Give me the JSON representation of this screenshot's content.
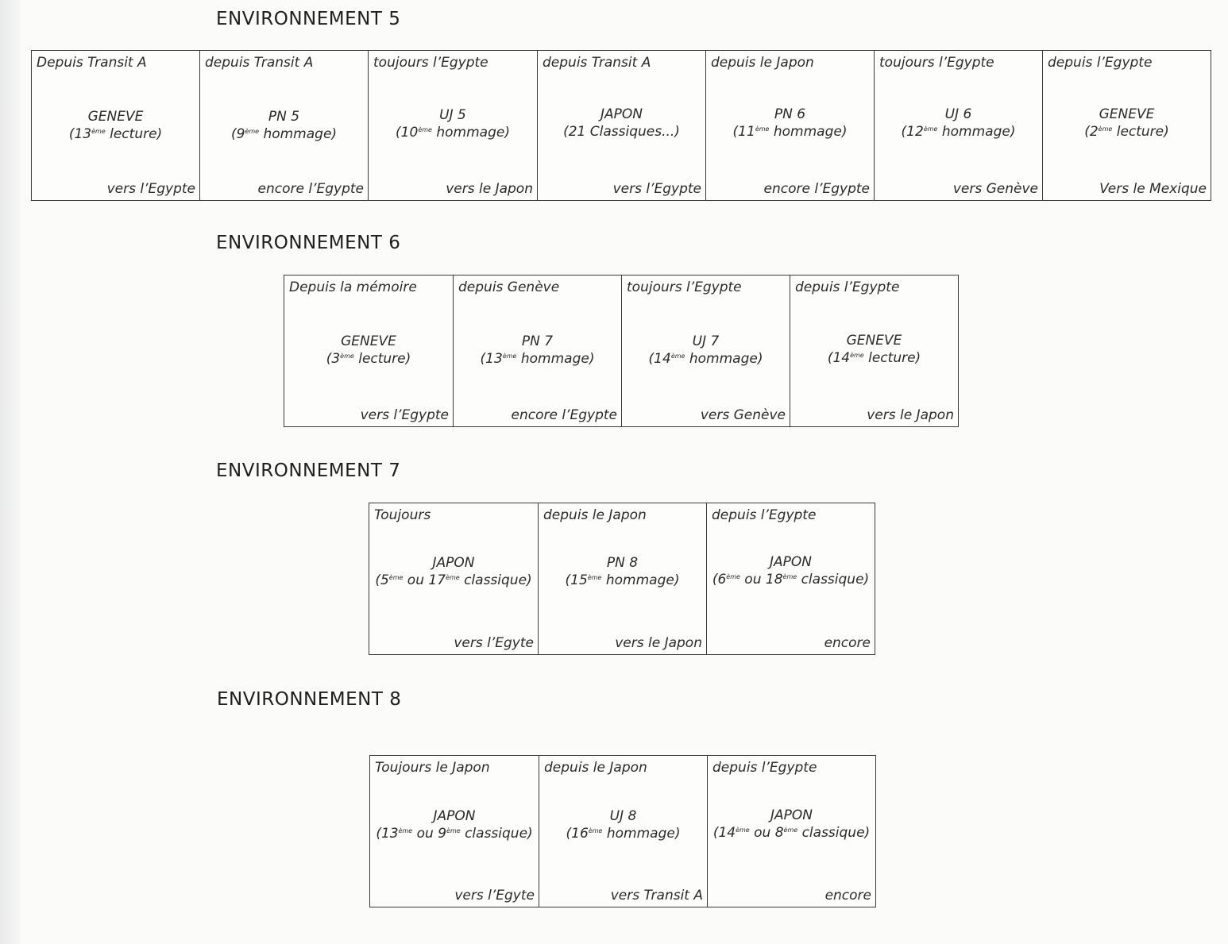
{
  "environments": [
    {
      "title": "ENVIRONNEMENT 5",
      "cells": [
        {
          "top": "Depuis Transit A",
          "name": "GENEVE",
          "note_pre": "(13",
          "note_sup": "ème",
          "note_post": " lecture)",
          "bottom": "vers l’Egypte"
        },
        {
          "top": "depuis Transit A",
          "name": "PN 5",
          "note_pre": "(9",
          "note_sup": "ème",
          "note_post": " hommage)",
          "bottom": "encore l’Egypte"
        },
        {
          "top": "toujours l’Egypte",
          "name": "UJ 5",
          "note_pre": "(10",
          "note_sup": "ème",
          "note_post": " hommage)",
          "bottom": "vers le Japon"
        },
        {
          "top": "depuis Transit A",
          "name": "JAPON",
          "note_pre": "(21 Classiques...)",
          "note_sup": "",
          "note_post": "",
          "bottom": "vers l’Egypte"
        },
        {
          "top": "depuis le Japon",
          "name": "PN 6",
          "note_pre": "(11",
          "note_sup": "ème",
          "note_post": " hommage)",
          "bottom": "encore l’Egypte"
        },
        {
          "top": "toujours l’Egypte",
          "name": "UJ 6",
          "note_pre": "(12",
          "note_sup": "ème",
          "note_post": " hommage)",
          "bottom": "vers Genève"
        },
        {
          "top": "depuis l’Egypte",
          "name": "GENEVE",
          "note_pre": "(2",
          "note_sup": "ème",
          "note_post": " lecture)",
          "bottom": "Vers le Mexique"
        }
      ]
    },
    {
      "title": "ENVIRONNEMENT 6",
      "cells": [
        {
          "top": "Depuis la mémoire",
          "name": "GENEVE",
          "note_pre": "(3",
          "note_sup": "ème",
          "note_post": " lecture)",
          "bottom": "vers l’Egypte"
        },
        {
          "top": "depuis Genève",
          "name": "PN 7",
          "note_pre": "(13",
          "note_sup": "ème",
          "note_post": " hommage)",
          "bottom": "encore l’Egypte"
        },
        {
          "top": "toujours l’Egypte",
          "name": "UJ 7",
          "note_pre": "(14",
          "note_sup": "ème",
          "note_post": " hommage)",
          "bottom": "vers Genève"
        },
        {
          "top": "depuis l’Egypte",
          "name": "GENEVE",
          "note_pre": "(14",
          "note_sup": "ème",
          "note_post": " lecture)",
          "bottom": "vers le Japon"
        }
      ]
    },
    {
      "title": "ENVIRONNEMENT 7",
      "cells": [
        {
          "top": "Toujours",
          "name": "JAPON",
          "note_pre": "(5",
          "note_sup": "ème",
          "note_mid": " ou 17",
          "note_sup2": "ème",
          "note_post": " classique)",
          "bottom": "vers l’Egyte"
        },
        {
          "top": "depuis le Japon",
          "name": "PN 8",
          "note_pre": "(15",
          "note_sup": "ème",
          "note_post": " hommage)",
          "bottom": "vers le Japon"
        },
        {
          "top": "depuis l’Egypte",
          "name": "JAPON",
          "note_pre": "(6",
          "note_sup": "ème",
          "note_mid": " ou 18",
          "note_sup2": "ème",
          "note_post": " classique)",
          "bottom": "encore"
        }
      ]
    },
    {
      "title": "ENVIRONNEMENT 8",
      "cells": [
        {
          "top": "Toujours le Japon",
          "name": "JAPON",
          "note_pre": "(13",
          "note_sup": "ème",
          "note_mid": " ou 9",
          "note_sup2": "ème",
          "note_post": " classique)",
          "bottom": "vers l’Egyte"
        },
        {
          "top": "depuis le Japon",
          "name": "UJ 8",
          "note_pre": "(16",
          "note_sup": "ème",
          "note_post": " hommage)",
          "bottom": "vers Transit A"
        },
        {
          "top": "depuis l’Egypte",
          "name": "JAPON",
          "note_pre": "(14",
          "note_sup": "ème",
          "note_mid": " ou 8",
          "note_sup2": "ème",
          "note_post": " classique)",
          "bottom": "encore"
        }
      ]
    }
  ]
}
